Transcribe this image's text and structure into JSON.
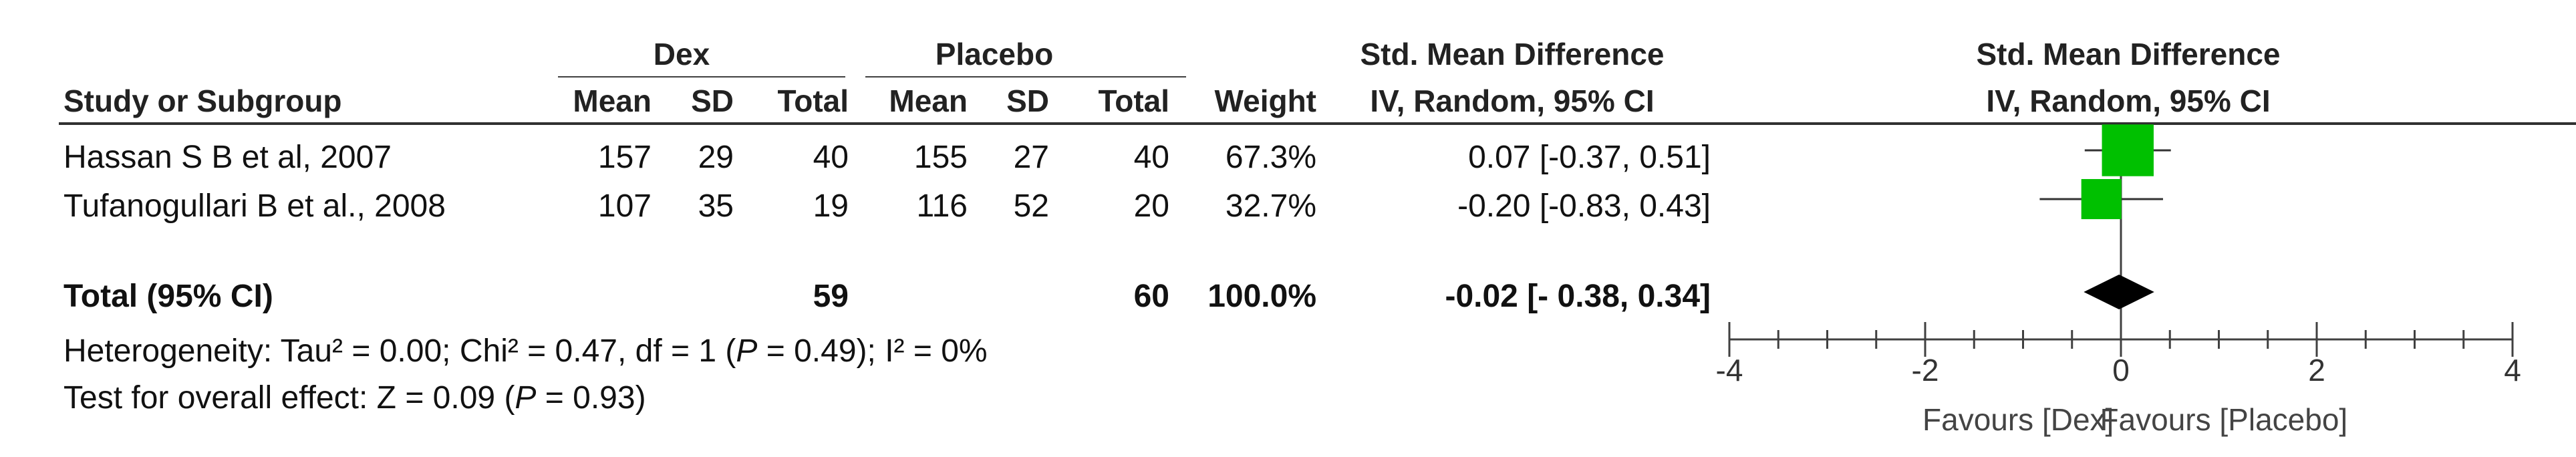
{
  "headers": {
    "group1": "Dex",
    "group2": "Placebo",
    "smd_title": "Std. Mean Difference",
    "smd_subtitle": "IV, Random, 95% CI",
    "plot_title": "Std. Mean Difference",
    "plot_subtitle": "IV, Random, 95% CI",
    "study": "Study or Subgroup",
    "mean": "Mean",
    "sd": "SD",
    "total": "Total",
    "weight": "Weight"
  },
  "studies": [
    {
      "name": "Hassan S B et al, 2007",
      "mean1": "157",
      "sd1": "29",
      "total1": "40",
      "mean2": "155",
      "sd2": "27",
      "total2": "40",
      "weight": "67.3%",
      "ci": "0.07 [-0.37, 0.51]"
    },
    {
      "name": "Tufanogullari B et al., 2008",
      "mean1": "107",
      "sd1": "35",
      "total1": "19",
      "mean2": "116",
      "sd2": "52",
      "total2": "20",
      "weight": "32.7%",
      "ci": "-0.20 [-0.83, 0.43]"
    }
  ],
  "total": {
    "label": "Total (95% CI)",
    "total1": "59",
    "total2": "60",
    "weight": "100.0%",
    "ci": "-0.02 [- 0.38, 0.34]"
  },
  "heterogeneity": {
    "prefix": "Heterogeneity: Tau² = 0.00; Chi² = 0.47, df = 1 (",
    "p": "P",
    "suffix": " = 0.49); I² = 0%"
  },
  "overall": {
    "prefix": "Test for overall effect: Z = 0.09 (",
    "p": "P",
    "suffix": " = 0.93)"
  },
  "chart_data": {
    "type": "scatter",
    "subtype": "forest-plot",
    "title": "Std. Mean Difference",
    "subtitle": "IV, Random, 95% CI",
    "xlim": [
      -4,
      4
    ],
    "ticks": [
      -4,
      -2,
      0,
      2,
      4
    ],
    "tick_labels": [
      "-4",
      "-2",
      "0",
      "2",
      "4"
    ],
    "favours_left": "Favours [Dex]",
    "favours_right": "Favours [Placebo]",
    "series": [
      {
        "study": "Hassan S B et al, 2007",
        "estimate": 0.07,
        "lower": -0.37,
        "upper": 0.51,
        "weight": 67.3
      },
      {
        "study": "Tufanogullari B et al., 2008",
        "estimate": -0.2,
        "lower": -0.83,
        "upper": 0.43,
        "weight": 32.7
      }
    ],
    "pooled": {
      "estimate": -0.02,
      "lower": -0.38,
      "upper": 0.34
    },
    "colors": {
      "study_marker": "#00c000",
      "pooled_marker": "#000000",
      "axis": "#404040"
    }
  }
}
